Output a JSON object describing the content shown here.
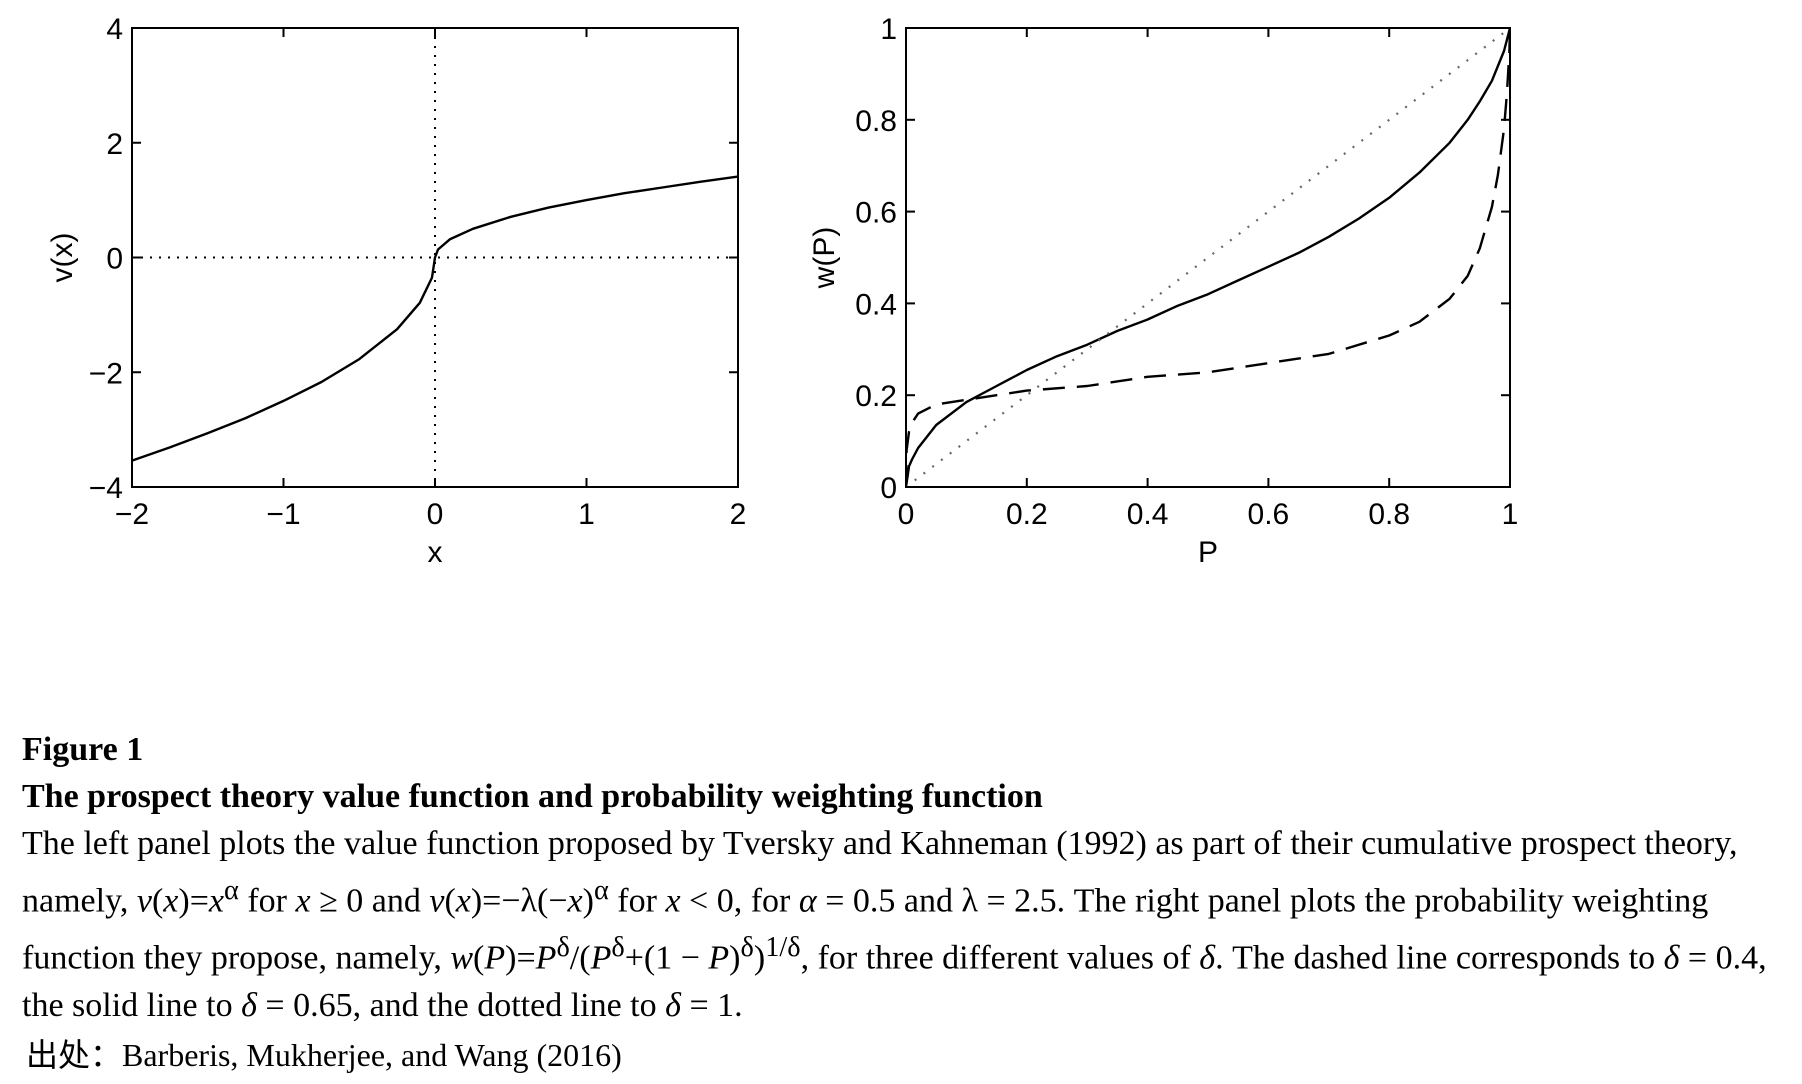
{
  "chart_data": [
    {
      "type": "line",
      "xlabel": "x",
      "ylabel": "v(x)",
      "xlim": [
        -2,
        2
      ],
      "ylim": [
        -4,
        4
      ],
      "xticks": [
        -2,
        -1,
        0,
        1,
        2
      ],
      "xtick_labels": [
        "−2",
        "−1",
        "0",
        "1",
        "2"
      ],
      "yticks": [
        -4,
        -2,
        0,
        2,
        4
      ],
      "ytick_labels": [
        "−4",
        "−2",
        "0",
        "2",
        "4"
      ],
      "grid": false,
      "reference_lines": [
        {
          "orientation": "horizontal",
          "value": 0,
          "style": "dotted"
        },
        {
          "orientation": "vertical",
          "value": 0,
          "style": "dotted"
        }
      ],
      "series": [
        {
          "style": "solid",
          "x": [
            -2,
            -1.75,
            -1.5,
            -1.25,
            -1,
            -0.75,
            -0.5,
            -0.25,
            -0.1,
            -0.02,
            0,
            0.02,
            0.1,
            0.25,
            0.5,
            0.75,
            1,
            1.25,
            1.5,
            1.75,
            2
          ],
          "y": [
            -3.54,
            -3.31,
            -3.06,
            -2.8,
            -2.5,
            -2.17,
            -1.77,
            -1.25,
            -0.79,
            -0.35,
            0,
            0.14,
            0.32,
            0.5,
            0.71,
            0.87,
            1.0,
            1.12,
            1.22,
            1.32,
            1.41
          ]
        }
      ]
    },
    {
      "type": "line",
      "xlabel": "P",
      "ylabel": "w(P)",
      "xlim": [
        0,
        1
      ],
      "ylim": [
        0,
        1
      ],
      "xticks": [
        0,
        0.2,
        0.4,
        0.6,
        0.8,
        1
      ],
      "xtick_labels": [
        "0",
        "0.2",
        "0.4",
        "0.6",
        "0.8",
        "1"
      ],
      "yticks": [
        0,
        0.2,
        0.4,
        0.6,
        0.8,
        1
      ],
      "ytick_labels": [
        "0",
        "0.2",
        "0.4",
        "0.6",
        "0.8",
        "1"
      ],
      "grid": false,
      "series": [
        {
          "style": "dashed",
          "x": [
            0,
            0.001,
            0.005,
            0.01,
            0.02,
            0.05,
            0.1,
            0.15,
            0.2,
            0.3,
            0.4,
            0.5,
            0.6,
            0.7,
            0.8,
            0.85,
            0.9,
            0.93,
            0.95,
            0.97,
            0.98,
            0.99,
            0.995,
            0.999,
            1
          ],
          "y": [
            0,
            0.08,
            0.12,
            0.14,
            0.16,
            0.18,
            0.19,
            0.2,
            0.21,
            0.22,
            0.24,
            0.25,
            0.27,
            0.29,
            0.33,
            0.36,
            0.41,
            0.46,
            0.52,
            0.61,
            0.68,
            0.78,
            0.86,
            0.95,
            1
          ]
        },
        {
          "style": "solid",
          "x": [
            0,
            0.005,
            0.01,
            0.02,
            0.05,
            0.1,
            0.15,
            0.2,
            0.25,
            0.3,
            0.35,
            0.4,
            0.45,
            0.5,
            0.55,
            0.6,
            0.65,
            0.7,
            0.75,
            0.8,
            0.85,
            0.9,
            0.93,
            0.95,
            0.97,
            0.99,
            1
          ],
          "y": [
            0,
            0.045,
            0.06,
            0.085,
            0.135,
            0.185,
            0.22,
            0.255,
            0.285,
            0.31,
            0.34,
            0.365,
            0.395,
            0.42,
            0.45,
            0.48,
            0.51,
            0.545,
            0.585,
            0.63,
            0.685,
            0.75,
            0.8,
            0.84,
            0.885,
            0.95,
            1
          ]
        },
        {
          "style": "dotted",
          "x": [
            0,
            1
          ],
          "y": [
            0,
            1
          ]
        }
      ]
    }
  ],
  "caption": {
    "label": "Figure 1",
    "title": "The prospect theory value function and probability weighting function",
    "body": [
      {
        "t": "text",
        "v": "The left panel plots the value function proposed by Tversky and Kahneman (1992) as part of their cumulative prospect theory, namely, "
      },
      {
        "t": "math",
        "v": "v"
      },
      {
        "t": "text",
        "v": "("
      },
      {
        "t": "math",
        "v": "x"
      },
      {
        "t": "text",
        "v": ")="
      },
      {
        "t": "math",
        "v": "x"
      },
      {
        "t": "sup",
        "v": "α"
      },
      {
        "t": "text",
        "v": " for "
      },
      {
        "t": "math",
        "v": "x"
      },
      {
        "t": "text",
        "v": " ≥ 0 and "
      },
      {
        "t": "math",
        "v": "v"
      },
      {
        "t": "text",
        "v": "("
      },
      {
        "t": "math",
        "v": "x"
      },
      {
        "t": "text",
        "v": ")=−λ(−"
      },
      {
        "t": "math",
        "v": "x"
      },
      {
        "t": "text",
        "v": ")"
      },
      {
        "t": "sup",
        "v": "α"
      },
      {
        "t": "text",
        "v": " for "
      },
      {
        "t": "math",
        "v": "x"
      },
      {
        "t": "text",
        "v": " < 0, for "
      },
      {
        "t": "math",
        "v": "α"
      },
      {
        "t": "text",
        "v": " = 0.5 and λ = 2.5. The right panel plots the probability weighting function they propose, namely, "
      },
      {
        "t": "math",
        "v": "w"
      },
      {
        "t": "text",
        "v": "("
      },
      {
        "t": "math",
        "v": "P"
      },
      {
        "t": "text",
        "v": ")="
      },
      {
        "t": "math",
        "v": "P"
      },
      {
        "t": "sup",
        "v": "δ"
      },
      {
        "t": "text",
        "v": "/("
      },
      {
        "t": "math",
        "v": "P"
      },
      {
        "t": "sup",
        "v": "δ"
      },
      {
        "t": "text",
        "v": "+(1 − "
      },
      {
        "t": "math",
        "v": "P"
      },
      {
        "t": "text",
        "v": ")"
      },
      {
        "t": "sup",
        "v": "δ"
      },
      {
        "t": "text",
        "v": ")"
      },
      {
        "t": "sup",
        "v": "1/δ"
      },
      {
        "t": "text",
        "v": ", for three different values of "
      },
      {
        "t": "math",
        "v": "δ"
      },
      {
        "t": "text",
        "v": ". The dashed line corresponds to "
      },
      {
        "t": "math",
        "v": "δ"
      },
      {
        "t": "text",
        "v": " = 0.4, the solid line to "
      },
      {
        "t": "math",
        "v": "δ"
      },
      {
        "t": "text",
        "v": " = 0.65, and the dotted line to "
      },
      {
        "t": "math",
        "v": "δ"
      },
      {
        "t": "text",
        "v": " = 1."
      }
    ]
  },
  "source": "出处：Barberis, Mukherjee, and Wang (2016)"
}
